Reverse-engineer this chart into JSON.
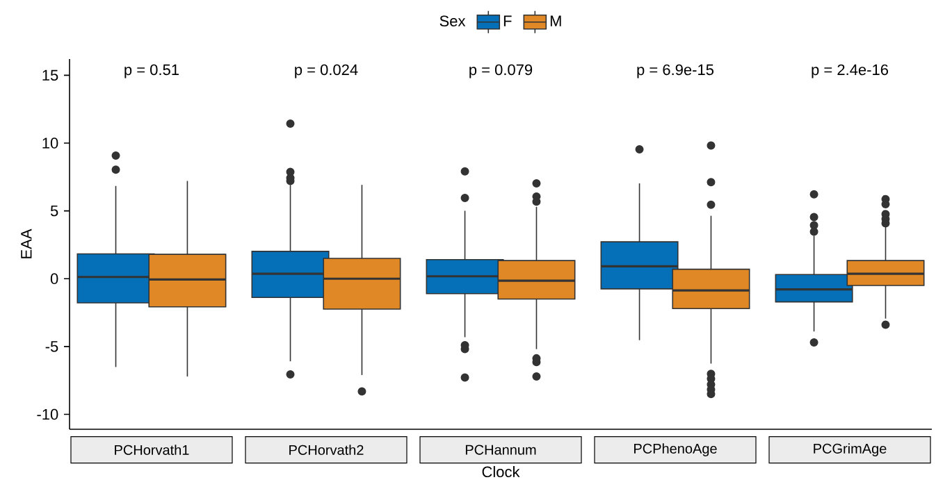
{
  "chart_data": {
    "type": "box",
    "xlabel": "Clock",
    "ylabel": "EAA",
    "legend_title": "Sex",
    "legend": "top",
    "categories": [
      "PCHorvath1",
      "PCHorvath2",
      "PCHannum",
      "PCPhenoAge",
      "PCGrimAge"
    ],
    "ylim": [
      -11.1,
      16.2
    ],
    "yticks": [
      -10,
      -5,
      0,
      5,
      10,
      15
    ],
    "annotations": [
      "p = 0.51",
      "p = 0.024",
      "p = 0.079",
      "p = 6.9e-15",
      "p = 2.4e-16"
    ],
    "series": [
      {
        "name": "F",
        "color": "#0570b8",
        "boxes": [
          {
            "low": -6.51,
            "q1": -1.78,
            "median": 0.13,
            "q3": 1.83,
            "high": 6.84,
            "outliers": [
              9.08,
              8.04
            ]
          },
          {
            "low": -6.09,
            "q1": -1.38,
            "median": 0.37,
            "q3": 2.02,
            "high": 6.92,
            "outliers": [
              11.43,
              7.87,
              7.43,
              7.21,
              -7.06
            ]
          },
          {
            "low": -4.31,
            "q1": -1.1,
            "median": 0.18,
            "q3": 1.41,
            "high": 5.01,
            "outliers": [
              7.91,
              5.96,
              -4.9,
              -5.19,
              -7.28
            ]
          },
          {
            "low": -4.53,
            "q1": -0.75,
            "median": 0.92,
            "q3": 2.72,
            "high": 7.03,
            "outliers": [
              9.54
            ]
          },
          {
            "low": -3.89,
            "q1": -1.71,
            "median": -0.79,
            "q3": 0.31,
            "high": 3.17,
            "outliers": [
              6.22,
              4.55,
              3.94,
              3.47,
              -4.7
            ]
          }
        ]
      },
      {
        "name": "M",
        "color": "#e08726",
        "boxes": [
          {
            "low": -7.21,
            "q1": -2.07,
            "median": -0.06,
            "q3": 1.8,
            "high": 7.21
          },
          {
            "low": -7.1,
            "q1": -2.24,
            "median": 0.0,
            "q3": 1.5,
            "high": 6.92,
            "outliers": [
              -8.31
            ]
          },
          {
            "low": -5.19,
            "q1": -1.5,
            "median": -0.15,
            "q3": 1.34,
            "high": 5.3,
            "outliers": [
              7.03,
              6.06,
              5.69,
              -5.87,
              -6.15,
              -7.21
            ]
          },
          {
            "low": -6.26,
            "q1": -2.2,
            "median": -0.86,
            "q3": 0.7,
            "high": 4.64,
            "outliers": [
              9.82,
              7.12,
              5.45,
              -7.01,
              -7.38,
              -7.8,
              -8.17,
              -8.5
            ]
          },
          {
            "low": -2.94,
            "q1": -0.5,
            "median": 0.37,
            "q3": 1.34,
            "high": 3.83,
            "outliers": [
              5.87,
              5.5,
              4.77,
              4.4,
              4.09,
              -3.39
            ]
          }
        ]
      }
    ]
  }
}
